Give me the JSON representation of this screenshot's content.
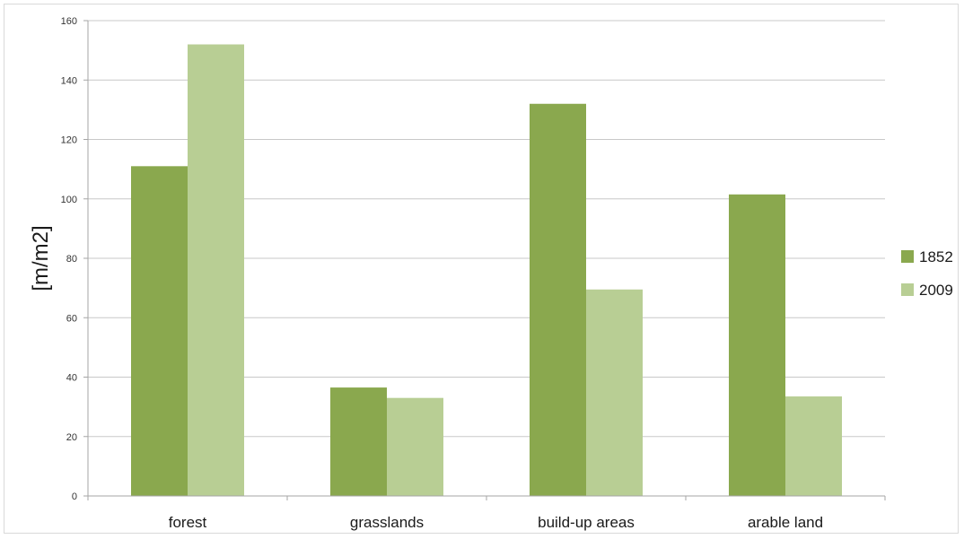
{
  "chart_data": {
    "type": "bar",
    "title": "",
    "xlabel": "",
    "ylabel": "[m/m2]",
    "categories": [
      "forest",
      "grasslands",
      "build-up areas",
      "arable land"
    ],
    "series": [
      {
        "name": "1852",
        "color": "#8aa84e",
        "values": [
          111,
          36.5,
          132,
          101.5
        ]
      },
      {
        "name": "2009",
        "color": "#b8ce94",
        "values": [
          152,
          33,
          69.5,
          33.5
        ]
      }
    ],
    "ylim": [
      0,
      160
    ],
    "yticks": [
      0,
      20,
      40,
      60,
      80,
      100,
      120,
      140,
      160
    ],
    "grid": true,
    "legend_position": "right"
  }
}
